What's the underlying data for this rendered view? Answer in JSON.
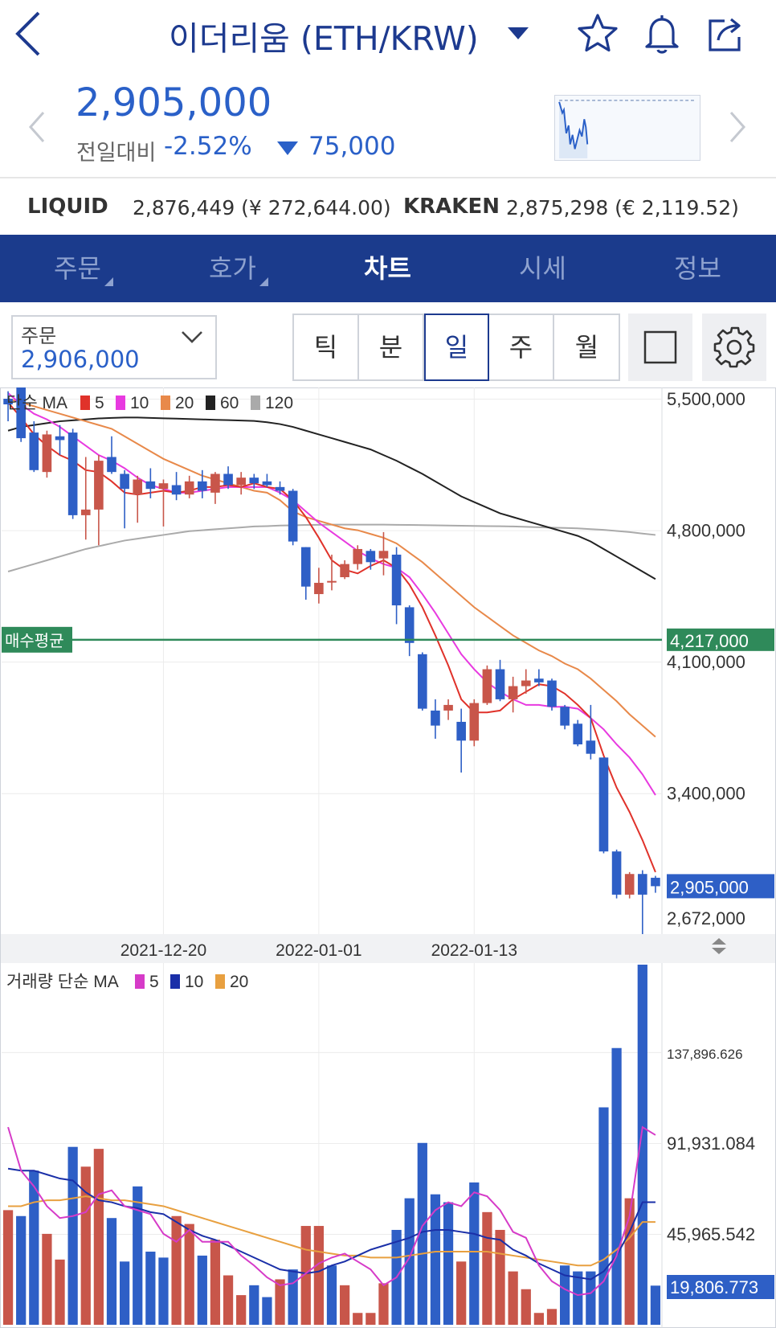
{
  "header": {
    "title": "이더리움 (ETH/KRW)"
  },
  "price": {
    "current": "2,905,000",
    "change_label": "전일대비",
    "change_pct": "-2.52%",
    "change_abs": "75,000",
    "color": "#2a60c8"
  },
  "exchanges": [
    {
      "name": "LIQUID",
      "value": "2,876,449 (¥ 272,644.00)"
    },
    {
      "name": "KRAKEN",
      "value": "2,875,298 (€ 2,119.52)"
    }
  ],
  "tabs": [
    {
      "label": "주문",
      "active": false,
      "has_corner": true
    },
    {
      "label": "호가",
      "active": false,
      "has_corner": true
    },
    {
      "label": "차트",
      "active": true,
      "has_corner": false
    },
    {
      "label": "시세",
      "active": false,
      "has_corner": false
    },
    {
      "label": "정보",
      "active": false,
      "has_corner": false
    }
  ],
  "order_box": {
    "label": "주문",
    "value": "2,906,000"
  },
  "periods": [
    {
      "label": "틱",
      "active": false
    },
    {
      "label": "분",
      "active": false
    },
    {
      "label": "일",
      "active": true
    },
    {
      "label": "주",
      "active": false
    },
    {
      "label": "월",
      "active": false
    }
  ],
  "chart_data": {
    "type": "candlestick",
    "price_panel": {
      "legend_prefix": "단순 MA",
      "ma_legend": [
        {
          "label": "5",
          "color": "#e0322a"
        },
        {
          "label": "10",
          "color": "#e83ae0"
        },
        {
          "label": "20",
          "color": "#e8894a"
        },
        {
          "label": "60",
          "color": "#222222"
        },
        {
          "label": "120",
          "color": "#aaaaaa"
        }
      ],
      "y_ticks": [
        "5,500,000",
        "4,800,000",
        "4,100,000",
        "3,400,000",
        "2,672,000"
      ],
      "y_tick_values": [
        5500000,
        4800000,
        4100000,
        3400000,
        2672000
      ],
      "ylim": [
        2650000,
        5560000
      ],
      "avg_buy_label": "매수평균",
      "avg_buy_value_label": "4,217,000",
      "avg_buy_value": 4217000,
      "avg_buy_color": "#2f8a5a",
      "current_label": "2,905,000",
      "current_value": 2905000,
      "up_color": "#c8564a",
      "down_color": "#2e5fc6",
      "candles": [
        {
          "o": 5500000,
          "h": 5540000,
          "l": 5380000,
          "c": 5470000
        },
        {
          "o": 5560000,
          "h": 5560000,
          "l": 5270000,
          "c": 5290000
        },
        {
          "o": 5320000,
          "h": 5380000,
          "l": 5110000,
          "c": 5120000
        },
        {
          "o": 5110000,
          "h": 5330000,
          "l": 5080000,
          "c": 5310000
        },
        {
          "o": 5300000,
          "h": 5360000,
          "l": 5200000,
          "c": 5280000
        },
        {
          "o": 5320000,
          "h": 5340000,
          "l": 4860000,
          "c": 4880000
        },
        {
          "o": 4880000,
          "h": 5190000,
          "l": 4750000,
          "c": 4910000
        },
        {
          "o": 4910000,
          "h": 5200000,
          "l": 4720000,
          "c": 5170000
        },
        {
          "o": 5190000,
          "h": 5300000,
          "l": 5100000,
          "c": 5110000
        },
        {
          "o": 5100000,
          "h": 5120000,
          "l": 4810000,
          "c": 5020000
        },
        {
          "o": 4990000,
          "h": 5090000,
          "l": 4840000,
          "c": 5070000
        },
        {
          "o": 5060000,
          "h": 5130000,
          "l": 4970000,
          "c": 5020000
        },
        {
          "o": 5020000,
          "h": 5070000,
          "l": 4820000,
          "c": 5050000
        },
        {
          "o": 5040000,
          "h": 5110000,
          "l": 4960000,
          "c": 4990000
        },
        {
          "o": 4990000,
          "h": 5090000,
          "l": 4970000,
          "c": 5060000
        },
        {
          "o": 5060000,
          "h": 5120000,
          "l": 4970000,
          "c": 5010000
        },
        {
          "o": 5000000,
          "h": 5110000,
          "l": 4940000,
          "c": 5100000
        },
        {
          "o": 5100000,
          "h": 5140000,
          "l": 5020000,
          "c": 5040000
        },
        {
          "o": 5040000,
          "h": 5110000,
          "l": 4990000,
          "c": 5080000
        },
        {
          "o": 5080000,
          "h": 5100000,
          "l": 5020000,
          "c": 5050000
        },
        {
          "o": 5060000,
          "h": 5100000,
          "l": 5030000,
          "c": 5040000
        },
        {
          "o": 5030000,
          "h": 5060000,
          "l": 4990000,
          "c": 5010000
        },
        {
          "o": 5010000,
          "h": 5020000,
          "l": 4720000,
          "c": 4740000
        },
        {
          "o": 4710000,
          "h": 4710000,
          "l": 4430000,
          "c": 4500000
        },
        {
          "o": 4460000,
          "h": 4600000,
          "l": 4410000,
          "c": 4520000
        },
        {
          "o": 4530000,
          "h": 4670000,
          "l": 4480000,
          "c": 4530000
        },
        {
          "o": 4550000,
          "h": 4640000,
          "l": 4540000,
          "c": 4620000
        },
        {
          "o": 4620000,
          "h": 4720000,
          "l": 4590000,
          "c": 4700000
        },
        {
          "o": 4690000,
          "h": 4700000,
          "l": 4590000,
          "c": 4630000
        },
        {
          "o": 4650000,
          "h": 4790000,
          "l": 4560000,
          "c": 4690000
        },
        {
          "o": 4670000,
          "h": 4710000,
          "l": 4300000,
          "c": 4400000
        },
        {
          "o": 4390000,
          "h": 4400000,
          "l": 4130000,
          "c": 4200000
        },
        {
          "o": 4140000,
          "h": 4150000,
          "l": 3840000,
          "c": 3850000
        },
        {
          "o": 3840000,
          "h": 3900000,
          "l": 3690000,
          "c": 3760000
        },
        {
          "o": 3840000,
          "h": 3900000,
          "l": 3790000,
          "c": 3870000
        },
        {
          "o": 3780000,
          "h": 3850000,
          "l": 3510000,
          "c": 3680000
        },
        {
          "o": 3680000,
          "h": 3900000,
          "l": 3650000,
          "c": 3880000
        },
        {
          "o": 3880000,
          "h": 4080000,
          "l": 3870000,
          "c": 4060000
        },
        {
          "o": 4060000,
          "h": 4110000,
          "l": 3890000,
          "c": 3900000
        },
        {
          "o": 3900000,
          "h": 4020000,
          "l": 3830000,
          "c": 3970000
        },
        {
          "o": 3970000,
          "h": 4060000,
          "l": 3930000,
          "c": 4000000
        },
        {
          "o": 4010000,
          "h": 4060000,
          "l": 3970000,
          "c": 3990000
        },
        {
          "o": 4000000,
          "h": 4010000,
          "l": 3840000,
          "c": 3860000
        },
        {
          "o": 3860000,
          "h": 3870000,
          "l": 3740000,
          "c": 3760000
        },
        {
          "o": 3770000,
          "h": 3790000,
          "l": 3650000,
          "c": 3660000
        },
        {
          "o": 3680000,
          "h": 3870000,
          "l": 3580000,
          "c": 3610000
        },
        {
          "o": 3590000,
          "h": 3590000,
          "l": 3080000,
          "c": 3090000
        },
        {
          "o": 3090000,
          "h": 3100000,
          "l": 2840000,
          "c": 2860000
        },
        {
          "o": 2860000,
          "h": 2980000,
          "l": 2840000,
          "c": 2970000
        },
        {
          "o": 2970000,
          "h": 2990000,
          "l": 2650000,
          "c": 2860000
        },
        {
          "o": 2950000,
          "h": 2960000,
          "l": 2870000,
          "c": 2905000
        }
      ],
      "ma5": [
        5480000,
        5400000,
        5310000,
        5250000,
        5200000,
        5170000,
        5120000,
        5110000,
        5060000,
        5000000,
        4990000,
        5000000,
        5010000,
        5000000,
        5010000,
        5030000,
        5030000,
        5040000,
        5030000,
        5050000,
        5030000,
        5020000,
        4960000,
        4870000,
        4760000,
        4640000,
        4590000,
        4570000,
        4610000,
        4640000,
        4600000,
        4510000,
        4390000,
        4240000,
        4080000,
        3900000,
        3830000,
        3830000,
        3840000,
        3900000,
        3940000,
        3980000,
        3970000,
        3930000,
        3870000,
        3800000,
        3600000,
        3430000,
        3300000,
        3150000,
        2980000
      ],
      "ma10": [
        5530000,
        5470000,
        5420000,
        5390000,
        5350000,
        5300000,
        5250000,
        5200000,
        5170000,
        5130000,
        5080000,
        5040000,
        5020000,
        5000000,
        5000000,
        5010000,
        5020000,
        5030000,
        5030000,
        5030000,
        5030000,
        5000000,
        4960000,
        4900000,
        4840000,
        4790000,
        4740000,
        4690000,
        4650000,
        4620000,
        4600000,
        4550000,
        4460000,
        4360000,
        4250000,
        4140000,
        4060000,
        3990000,
        3940000,
        3900000,
        3870000,
        3870000,
        3860000,
        3860000,
        3850000,
        3800000,
        3740000,
        3660000,
        3590000,
        3500000,
        3390000
      ],
      "ma20": [
        5500000,
        5480000,
        5460000,
        5440000,
        5420000,
        5400000,
        5380000,
        5360000,
        5340000,
        5300000,
        5260000,
        5220000,
        5180000,
        5150000,
        5120000,
        5090000,
        5070000,
        5050000,
        5030000,
        5010000,
        5000000,
        4960000,
        4900000,
        4870000,
        4850000,
        4830000,
        4810000,
        4800000,
        4780000,
        4760000,
        4730000,
        4680000,
        4630000,
        4570000,
        4510000,
        4450000,
        4390000,
        4340000,
        4290000,
        4240000,
        4200000,
        4160000,
        4130000,
        4090000,
        4060000,
        4010000,
        3950000,
        3890000,
        3820000,
        3760000,
        3700000
      ],
      "ma60": [
        5330000,
        5350000,
        5360000,
        5370000,
        5380000,
        5385000,
        5390000,
        5395000,
        5398000,
        5400000,
        5400000,
        5398000,
        5396000,
        5394000,
        5392000,
        5390000,
        5388000,
        5386000,
        5384000,
        5382000,
        5375000,
        5365000,
        5350000,
        5330000,
        5310000,
        5290000,
        5270000,
        5250000,
        5230000,
        5200000,
        5170000,
        5135000,
        5100000,
        5060000,
        5020000,
        4980000,
        4950000,
        4920000,
        4890000,
        4870000,
        4850000,
        4830000,
        4810000,
        4790000,
        4770000,
        4740000,
        4700000,
        4660000,
        4620000,
        4580000,
        4540000
      ],
      "ma120": [
        4580000,
        4600000,
        4620000,
        4640000,
        4660000,
        4680000,
        4700000,
        4715000,
        4730000,
        4745000,
        4755000,
        4765000,
        4775000,
        4785000,
        4795000,
        4800000,
        4805000,
        4810000,
        4815000,
        4820000,
        4822000,
        4825000,
        4826000,
        4828000,
        4829000,
        4830000,
        4830000,
        4830000,
        4830000,
        4830000,
        4829000,
        4828000,
        4827000,
        4826000,
        4825000,
        4824000,
        4823000,
        4822000,
        4821000,
        4820000,
        4818000,
        4816000,
        4814000,
        4812000,
        4810000,
        4806000,
        4802000,
        4796000,
        4790000,
        4782000,
        4775000
      ]
    },
    "x_labels": [
      "2021-12-20",
      "2022-01-01",
      "2022-01-13"
    ],
    "x_label_indices": [
      12,
      24,
      36
    ],
    "volume_panel": {
      "legend_prefix": "거래량 단순 MA",
      "ma_legend": [
        {
          "label": "5",
          "color": "#d63bc8"
        },
        {
          "label": "10",
          "color": "#1a2fa8"
        },
        {
          "label": "20",
          "color": "#e8a040"
        }
      ],
      "y_ticks": [
        "137,896.626",
        "91,931.084",
        "45,965.542"
      ],
      "y_tick_values": [
        137896.626,
        91931.084,
        45965.542
      ],
      "ylim": [
        0,
        183000
      ],
      "current_label": "19,806.773",
      "values": [
        58000,
        55000,
        78000,
        46000,
        33000,
        90000,
        80000,
        89000,
        54000,
        32000,
        70000,
        37000,
        34000,
        55000,
        51000,
        35000,
        43000,
        25000,
        15000,
        20000,
        14000,
        23000,
        28000,
        50000,
        50000,
        30000,
        20000,
        6000,
        6000,
        21000,
        48000,
        64000,
        92000,
        66000,
        62000,
        32000,
        72000,
        57000,
        48000,
        27000,
        18000,
        6000,
        8000,
        30000,
        27000,
        27000,
        110000,
        140000,
        64000,
        188000,
        19806.773
      ],
      "up_flags": [
        1,
        0,
        0,
        1,
        1,
        0,
        1,
        1,
        0,
        0,
        0,
        0,
        0,
        1,
        1,
        0,
        1,
        1,
        1,
        0,
        0,
        1,
        0,
        1,
        1,
        0,
        1,
        1,
        1,
        1,
        0,
        0,
        0,
        0,
        0,
        1,
        0,
        1,
        1,
        1,
        1,
        1,
        1,
        0,
        0,
        0,
        0,
        0,
        1,
        0,
        0
      ],
      "ma5": [
        100000,
        78000,
        70000,
        60000,
        54000,
        55000,
        57000,
        66000,
        68000,
        60000,
        58000,
        56000,
        46000,
        42000,
        48000,
        42000,
        42000,
        42000,
        35000,
        30000,
        24000,
        20000,
        21000,
        26000,
        31000,
        34000,
        36000,
        32000,
        28000,
        20000,
        24000,
        34000,
        50000,
        58000,
        62000,
        60000,
        67000,
        65000,
        58000,
        47000,
        44000,
        30000,
        22000,
        18000,
        15000,
        16000,
        22000,
        35000,
        55000,
        100000,
        96000
      ],
      "ma10": [
        79000,
        78000,
        78000,
        76000,
        74000,
        73000,
        67000,
        63000,
        62000,
        60000,
        59000,
        57000,
        56000,
        52000,
        48000,
        45000,
        43000,
        40000,
        37000,
        34000,
        31000,
        28000,
        27000,
        26000,
        27000,
        30000,
        32000,
        35000,
        38000,
        40000,
        42000,
        44000,
        47000,
        48000,
        48000,
        47000,
        46000,
        44000,
        43000,
        38000,
        35000,
        31000,
        28000,
        25000,
        24000,
        23000,
        27000,
        35000,
        47000,
        62000,
        62000
      ],
      "ma20": [
        60000,
        60000,
        62000,
        63000,
        63000,
        64000,
        65000,
        64000,
        63000,
        63000,
        62000,
        61000,
        60000,
        58000,
        56000,
        54000,
        52000,
        50000,
        48000,
        46000,
        44000,
        42000,
        40000,
        38000,
        37000,
        36000,
        35000,
        35000,
        34000,
        34000,
        34000,
        35000,
        36000,
        37000,
        37000,
        37000,
        37000,
        37000,
        36000,
        35000,
        34000,
        33000,
        32000,
        31000,
        30000,
        30000,
        33000,
        38000,
        44000,
        52000,
        52000
      ]
    }
  }
}
